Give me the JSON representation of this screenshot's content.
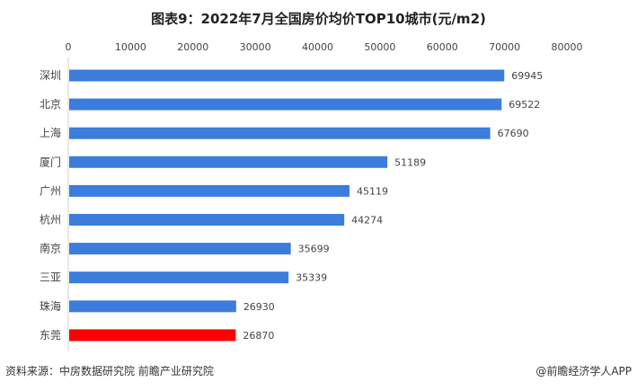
{
  "chart_data": {
    "type": "bar",
    "orientation": "horizontal",
    "title": "图表9：2022年7月全国房价均价TOP10城市(元/m2)",
    "categories": [
      "深圳",
      "北京",
      "上海",
      "厦门",
      "广州",
      "杭州",
      "南京",
      "三亚",
      "珠海",
      "东莞"
    ],
    "values": [
      69945,
      69522,
      67690,
      51189,
      45119,
      44274,
      35699,
      35339,
      26930,
      26870
    ],
    "xlim": [
      0,
      80000
    ],
    "xticks": [
      0,
      10000,
      20000,
      30000,
      40000,
      50000,
      60000,
      70000,
      80000
    ],
    "axis_position": "top",
    "grid": false,
    "bar_color": "#3b7ddd",
    "highlight_color": "#ff0000",
    "highlight_category": "东莞"
  },
  "footer": {
    "source": "资料来源：中房数据研究院 前瞻产业研究院",
    "credit": "@前瞻经济学人APP"
  }
}
